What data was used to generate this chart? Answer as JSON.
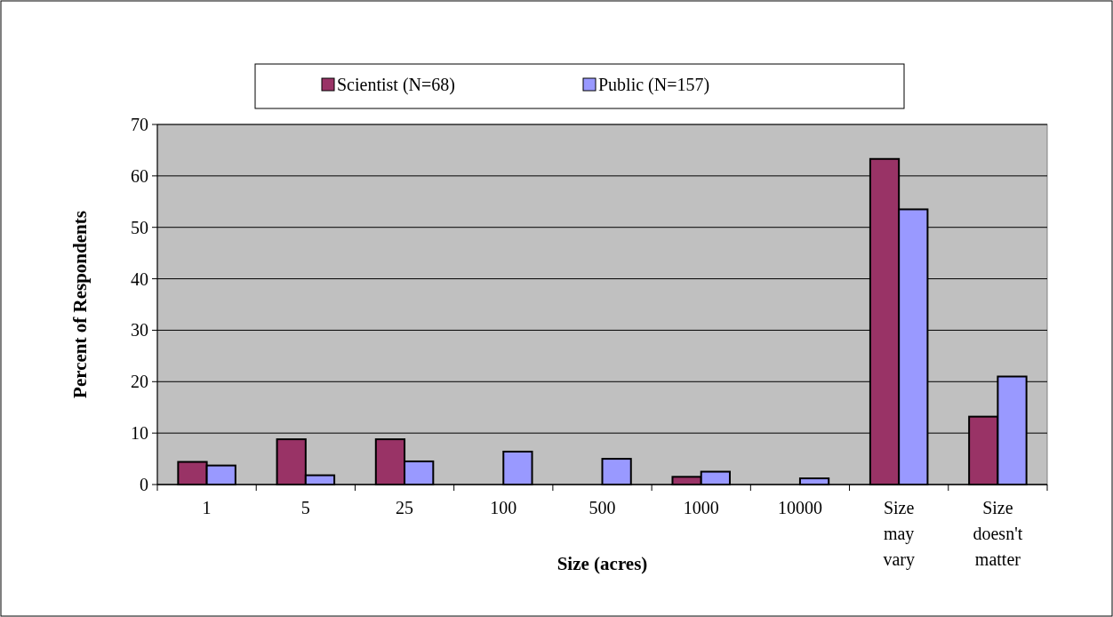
{
  "chart_data": {
    "type": "bar",
    "xlabel": "Size (acres)",
    "ylabel": "Percent of Respondents",
    "categories": [
      "1",
      "5",
      "25",
      "100",
      "500",
      "1000",
      "10000",
      "Size may vary",
      "Size doesn't matter"
    ],
    "series": [
      {
        "name": "Scientist (N=68)",
        "color": "#993366",
        "values": [
          4.4,
          8.8,
          8.8,
          0,
          0,
          1.5,
          0,
          63.3,
          13.2
        ]
      },
      {
        "name": "Public (N=157)",
        "color": "#9999ff",
        "values": [
          3.7,
          1.8,
          4.5,
          6.4,
          5.0,
          2.5,
          1.2,
          53.5,
          21.0
        ]
      }
    ],
    "ylim": [
      0,
      70
    ],
    "yticks": [
      0,
      10,
      20,
      30,
      40,
      50,
      60,
      70
    ],
    "grid": "y",
    "legend": "top"
  }
}
